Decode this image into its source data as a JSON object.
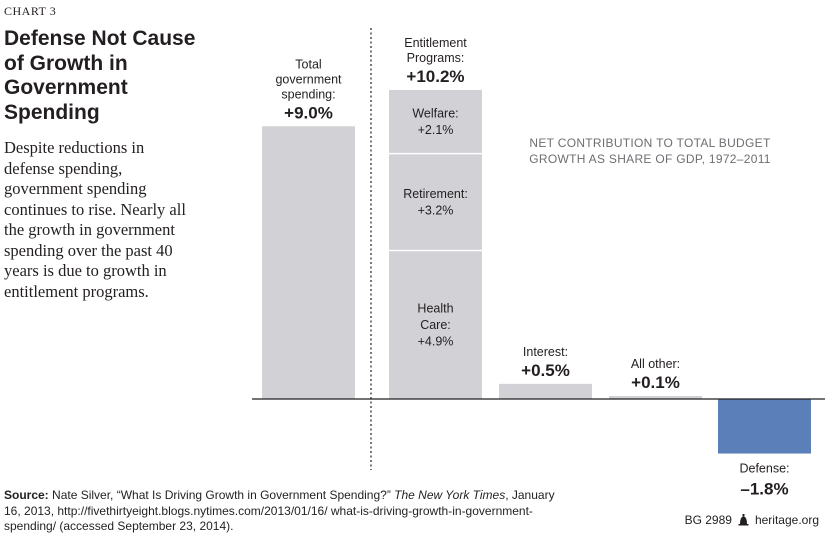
{
  "header": {
    "chart_number": "CHART 3",
    "title": "Defense Not Cause of Growth in Government Spending",
    "description": "Despite reductions in defense spending, government spending continues to rise. Nearly all the growth in government spending over the past 40 years is due to growth in entitlement programs."
  },
  "chart_note": "NET CONTRIBUTION TO TOTAL BUDGET GROWTH AS SHARE OF GDP, 1972–2011",
  "chart_data": {
    "type": "bar",
    "unit": "% of GDP",
    "colors": {
      "positive": "#d1d1d6",
      "negative": "#5b7fb9",
      "divider": "#ffffff"
    },
    "bars": [
      {
        "id": "total",
        "label_lines": [
          "Total",
          "government",
          "spending:"
        ],
        "value_label": "+9.0%",
        "value": 9.0,
        "color": "#d1d1d6"
      },
      {
        "id": "entitlement",
        "label_lines": [
          "Entitlement",
          "Programs:"
        ],
        "value_label": "+10.2%",
        "value": 10.2,
        "color": "#d1d1d6",
        "stack": [
          {
            "label_lines": [
              "Health",
              "Care:"
            ],
            "value_label": "+4.9%",
            "value": 4.9
          },
          {
            "label_lines": [
              "Retirement:"
            ],
            "value_label": "+3.2%",
            "value": 3.2
          },
          {
            "label_lines": [
              "Welfare:"
            ],
            "value_label": "+2.1%",
            "value": 2.1
          }
        ]
      },
      {
        "id": "interest",
        "label_lines": [
          "Interest:"
        ],
        "value_label": "+0.5%",
        "value": 0.5,
        "color": "#d1d1d6"
      },
      {
        "id": "allother",
        "label_lines": [
          "All other:"
        ],
        "value_label": "+0.1%",
        "value": 0.1,
        "color": "#d1d1d6"
      },
      {
        "id": "defense",
        "label_lines": [
          "Defense:"
        ],
        "value_label": "–1.8%",
        "value": -1.8,
        "color": "#5b7fb9"
      }
    ]
  },
  "source": {
    "label": "Source:",
    "text_before": " Nate Silver, “What Is Driving Growth in Government Spending?” ",
    "publication": "The New York Times",
    "text_after": ", January 16, 2013, http://fivethirtyeight.blogs.nytimes.com/2013/01/16/ what-is-driving-growth-in-government-spending/ (accessed September 23, 2014)."
  },
  "footer": {
    "id": "BG 2989",
    "site": "heritage.org",
    "logo_icon": "liberty-bell-icon"
  }
}
